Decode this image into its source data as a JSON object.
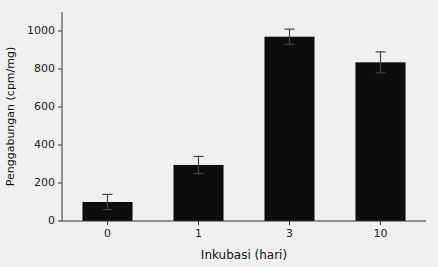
{
  "chart_data": {
    "type": "bar",
    "categories": [
      "0",
      "1",
      "3",
      "10"
    ],
    "values": [
      100,
      295,
      970,
      835
    ],
    "errors": [
      40,
      45,
      40,
      55
    ],
    "color": "#0d0d0d",
    "xlabel": "Inkubasi (hari)",
    "ylabel": "Penggabungan (cpm/mg)",
    "ylim": [
      0,
      1100
    ],
    "yticks": [
      0,
      200,
      400,
      600,
      800,
      1000
    ],
    "grid": false
  }
}
